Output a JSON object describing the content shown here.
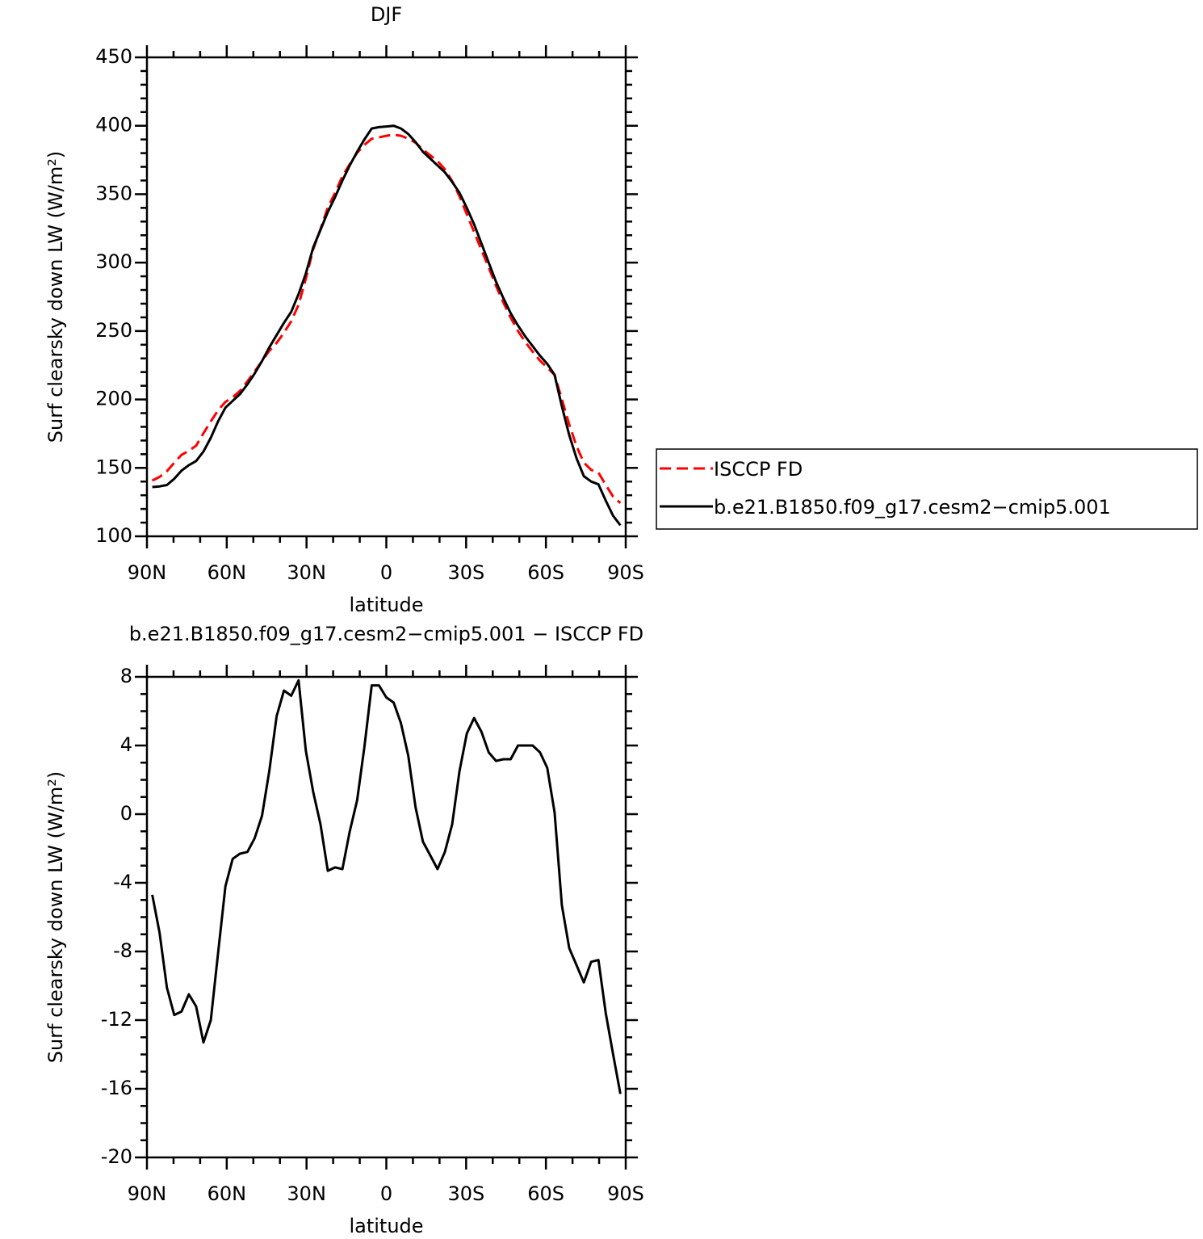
{
  "chart_data": [
    {
      "type": "line",
      "title": "DJF",
      "xlabel": "latitude",
      "ylabel": "Surf clearsky down LW (W/m²)",
      "x": [
        88,
        85.25,
        82.5,
        79.75,
        77,
        74.25,
        71.5,
        68.75,
        66,
        63.25,
        60.5,
        57.75,
        55,
        52.25,
        49.5,
        46.75,
        44,
        41.25,
        38.5,
        35.75,
        33,
        30.25,
        27.5,
        24.75,
        22,
        19.25,
        16.5,
        13.75,
        11,
        8.25,
        5.5,
        2.75,
        0,
        -2.75,
        -5.5,
        -8.25,
        -11,
        -13.75,
        -16.5,
        -19.25,
        -22,
        -24.75,
        -27.5,
        -30.25,
        -33,
        -35.75,
        -38.5,
        -41.25,
        -44,
        -46.75,
        -49.5,
        -52.25,
        -55,
        -57.75,
        -60.5,
        -63.25,
        -66,
        -68.75,
        -71.5,
        -74.25,
        -77,
        -79.75,
        -82.5,
        -85.25,
        -88
      ],
      "series": [
        {
          "name": "ISCCP FD",
          "color": "#ff0000",
          "line_style": "dashed",
          "values": [
            140.7,
            143.4,
            147.6,
            153.7,
            159.5,
            162.5,
            166.2,
            175.3,
            184,
            192.1,
            198.2,
            201.6,
            206.3,
            213.2,
            220.4,
            228.1,
            235.5,
            241.3,
            248.8,
            257.1,
            269.2,
            288.3,
            309.7,
            324.6,
            340.3,
            351.1,
            363.2,
            372,
            380.2,
            386.1,
            390.5,
            391.5,
            392.7,
            393.5,
            392.7,
            390.6,
            387.6,
            382.6,
            378.4,
            374.2,
            368.2,
            359.6,
            348.5,
            335.3,
            322.4,
            309.2,
            296.4,
            282.9,
            270.8,
            259.8,
            250,
            242,
            235,
            228.4,
            223.3,
            217.9,
            200.3,
            181.8,
            165.8,
            153.8,
            148.6,
            146.5,
            137.6,
            129,
            124.3
          ]
        },
        {
          "name": "b.e21.B1850.f09_g17.cesm2−cmip5.001",
          "color": "#000000",
          "line_style": "solid",
          "values": [
            136,
            136.5,
            137.5,
            142,
            148,
            152,
            155,
            162,
            172,
            184,
            194,
            199,
            204,
            211,
            219,
            228,
            238,
            247,
            256,
            264,
            277,
            292,
            311,
            324,
            337,
            348,
            360,
            371,
            381,
            390,
            398,
            399,
            399.5,
            400,
            398,
            394,
            388,
            381,
            376,
            371,
            366,
            359,
            351,
            340,
            328,
            314,
            300,
            286,
            274,
            263,
            254,
            246,
            239,
            232,
            226,
            218,
            195,
            174,
            157,
            144,
            140,
            138,
            126,
            115,
            108
          ]
        }
      ],
      "xlim": [
        90,
        -90
      ],
      "xticks": [
        {
          "value": 90,
          "label": "90N"
        },
        {
          "value": 60,
          "label": "60N"
        },
        {
          "value": 30,
          "label": "30N"
        },
        0,
        {
          "value": -30,
          "label": "30S"
        },
        {
          "value": -60,
          "label": "60S"
        },
        {
          "value": -90,
          "label": "90S"
        }
      ],
      "ylim": [
        100,
        450
      ],
      "yticks": [
        100,
        150,
        200,
        250,
        300,
        350,
        400,
        450
      ],
      "x_minor_divisions": 3,
      "y_minor_divisions": 5,
      "legend": "right"
    },
    {
      "type": "line",
      "title": "b.e21.B1850.f09_g17.cesm2−cmip5.001 − ISCCP FD",
      "xlabel": "latitude",
      "ylabel": "Surf clearsky down LW (W/m²)",
      "x": [
        88,
        85.25,
        82.5,
        79.75,
        77,
        74.25,
        71.5,
        68.75,
        66,
        63.25,
        60.5,
        57.75,
        55,
        52.25,
        49.5,
        46.75,
        44,
        41.25,
        38.5,
        35.75,
        33,
        30.25,
        27.5,
        24.75,
        22,
        19.25,
        16.5,
        13.75,
        11,
        8.25,
        5.5,
        2.75,
        0,
        -2.75,
        -5.5,
        -8.25,
        -11,
        -13.75,
        -16.5,
        -19.25,
        -22,
        -24.75,
        -27.5,
        -30.25,
        -33,
        -35.75,
        -38.5,
        -41.25,
        -44,
        -46.75,
        -49.5,
        -52.25,
        -55,
        -57.75,
        -60.5,
        -63.25,
        -66,
        -68.75,
        -71.5,
        -74.25,
        -77,
        -79.75,
        -82.5,
        -85.25,
        -88
      ],
      "values": [
        -4.7,
        -6.9,
        -10.1,
        -11.7,
        -11.5,
        -10.5,
        -11.2,
        -13.3,
        -12,
        -8.1,
        -4.2,
        -2.6,
        -2.3,
        -2.2,
        -1.4,
        -0.1,
        2.5,
        5.7,
        7.2,
        6.9,
        7.8,
        3.7,
        1.3,
        -0.6,
        -3.3,
        -3.1,
        -3.2,
        -1,
        0.8,
        3.9,
        7.5,
        7.5,
        6.8,
        6.5,
        5.3,
        3.4,
        0.4,
        -1.6,
        -2.4,
        -3.2,
        -2.2,
        -0.6,
        2.5,
        4.7,
        5.6,
        4.8,
        3.6,
        3.1,
        3.2,
        3.2,
        4,
        4,
        4,
        3.6,
        2.7,
        0.1,
        -5.3,
        -7.8,
        -8.8,
        -9.8,
        -8.6,
        -8.5,
        -11.6,
        -14,
        -16.3
      ],
      "color": "#000000",
      "xlim": [
        90,
        -90
      ],
      "xticks": [
        {
          "value": 90,
          "label": "90N"
        },
        {
          "value": 60,
          "label": "60N"
        },
        {
          "value": 30,
          "label": "30N"
        },
        0,
        {
          "value": -30,
          "label": "30S"
        },
        {
          "value": -60,
          "label": "60S"
        },
        {
          "value": -90,
          "label": "90S"
        }
      ],
      "ylim": [
        -20,
        8
      ],
      "yticks": [
        -20,
        -16,
        -12,
        -8,
        -4,
        0,
        4,
        8
      ],
      "x_minor_divisions": 3,
      "y_minor_divisions": 4
    }
  ]
}
